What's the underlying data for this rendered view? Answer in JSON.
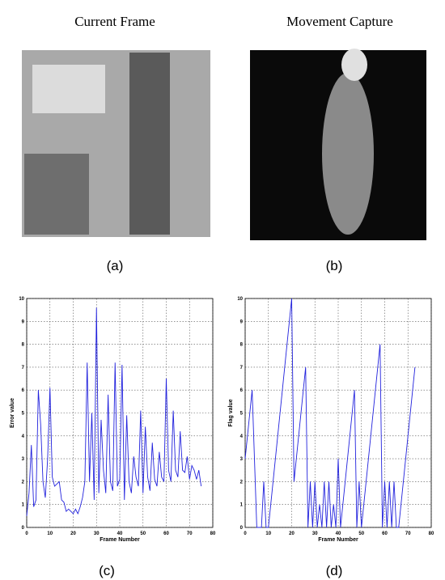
{
  "images": [
    {
      "title": "Current Frame",
      "caption": "(a)"
    },
    {
      "title": "Movement Capture",
      "caption": "(b)"
    }
  ],
  "chart_data": [
    {
      "type": "line",
      "caption": "(c)",
      "x_label": "Frame Number",
      "y_label": "Error value",
      "color": "#2222dd",
      "grid": true,
      "xlim": [
        0,
        80
      ],
      "ylim": [
        0,
        10
      ],
      "xticks": [
        0,
        10,
        20,
        30,
        40,
        50,
        60,
        70,
        80
      ],
      "yticks": [
        0,
        1,
        2,
        3,
        4,
        5,
        6,
        7,
        8,
        9,
        10
      ],
      "x": [
        0,
        1,
        2,
        3,
        4,
        5,
        6,
        7,
        8,
        9,
        10,
        11,
        12,
        13,
        14,
        15,
        16,
        17,
        18,
        19,
        20,
        21,
        22,
        23,
        24,
        25,
        26,
        27,
        28,
        29,
        30,
        31,
        32,
        33,
        34,
        35,
        36,
        37,
        38,
        39,
        40,
        41,
        42,
        43,
        44,
        45,
        46,
        47,
        48,
        49,
        50,
        51,
        52,
        53,
        54,
        55,
        56,
        57,
        58,
        59,
        60,
        61,
        62,
        63,
        64,
        65,
        66,
        67,
        68,
        69,
        70,
        71,
        72,
        73,
        74,
        75
      ],
      "values": [
        0.5,
        1.5,
        3.6,
        0.9,
        1.2,
        6,
        4.5,
        2,
        1.3,
        3,
        6.1,
        2.2,
        1.8,
        1.9,
        2,
        1.2,
        1.1,
        0.7,
        0.8,
        0.7,
        0.6,
        0.8,
        0.6,
        0.9,
        1.3,
        2,
        7.2,
        2,
        5,
        1.2,
        9.6,
        1.5,
        4.7,
        2.5,
        1.5,
        5.8,
        2,
        1.6,
        7.2,
        1.8,
        2.1,
        7.1,
        1.2,
        4.9,
        2,
        1.5,
        3.1,
        2.2,
        1.8,
        5.1,
        1.5,
        4.4,
        2.2,
        1.6,
        3.7,
        2.1,
        1.8,
        3.3,
        2.2,
        2,
        6.5,
        2.5,
        2,
        5.1,
        2.5,
        2.2,
        4.2,
        2.5,
        2.4,
        3.1,
        2.1,
        2.7,
        2.5,
        2.1,
        2.5,
        1.8
      ]
    },
    {
      "type": "line",
      "caption": "(d)",
      "x_label": "Frame Number",
      "y_label": "Flag value",
      "color": "#2222dd",
      "grid": true,
      "xlim": [
        0,
        80
      ],
      "ylim": [
        0,
        10
      ],
      "xticks": [
        0,
        10,
        20,
        30,
        40,
        50,
        60,
        70,
        80
      ],
      "yticks": [
        0,
        1,
        2,
        3,
        4,
        5,
        6,
        7,
        8,
        9,
        10
      ],
      "x": [
        0,
        1,
        2,
        3,
        4,
        5,
        6,
        7,
        8,
        9,
        10,
        11,
        12,
        13,
        14,
        15,
        16,
        17,
        18,
        19,
        20,
        21,
        22,
        23,
        24,
        25,
        26,
        27,
        28,
        29,
        30,
        31,
        32,
        33,
        34,
        35,
        36,
        37,
        38,
        39,
        40,
        41,
        42,
        43,
        44,
        45,
        46,
        47,
        48,
        49,
        50,
        51,
        52,
        53,
        54,
        55,
        56,
        57,
        58,
        59,
        60,
        61,
        62,
        63,
        64,
        65,
        66,
        67,
        68,
        69,
        70,
        71,
        72,
        73
      ],
      "values": [
        3,
        4,
        5,
        6,
        3,
        0,
        0,
        0,
        2,
        0,
        0,
        1,
        2,
        3,
        4,
        5,
        6,
        7,
        8,
        9,
        10,
        2,
        3,
        4,
        5,
        6,
        7,
        0,
        2,
        0,
        2,
        0,
        1,
        0,
        2,
        0,
        2,
        0,
        1,
        0,
        3,
        0,
        1,
        2,
        3,
        4,
        5,
        6,
        0,
        2,
        0,
        1,
        2,
        3,
        4,
        5,
        6,
        7,
        8,
        0,
        2,
        0,
        2,
        0,
        2,
        0,
        0,
        1,
        2,
        3,
        4,
        5,
        6,
        7
      ]
    }
  ]
}
